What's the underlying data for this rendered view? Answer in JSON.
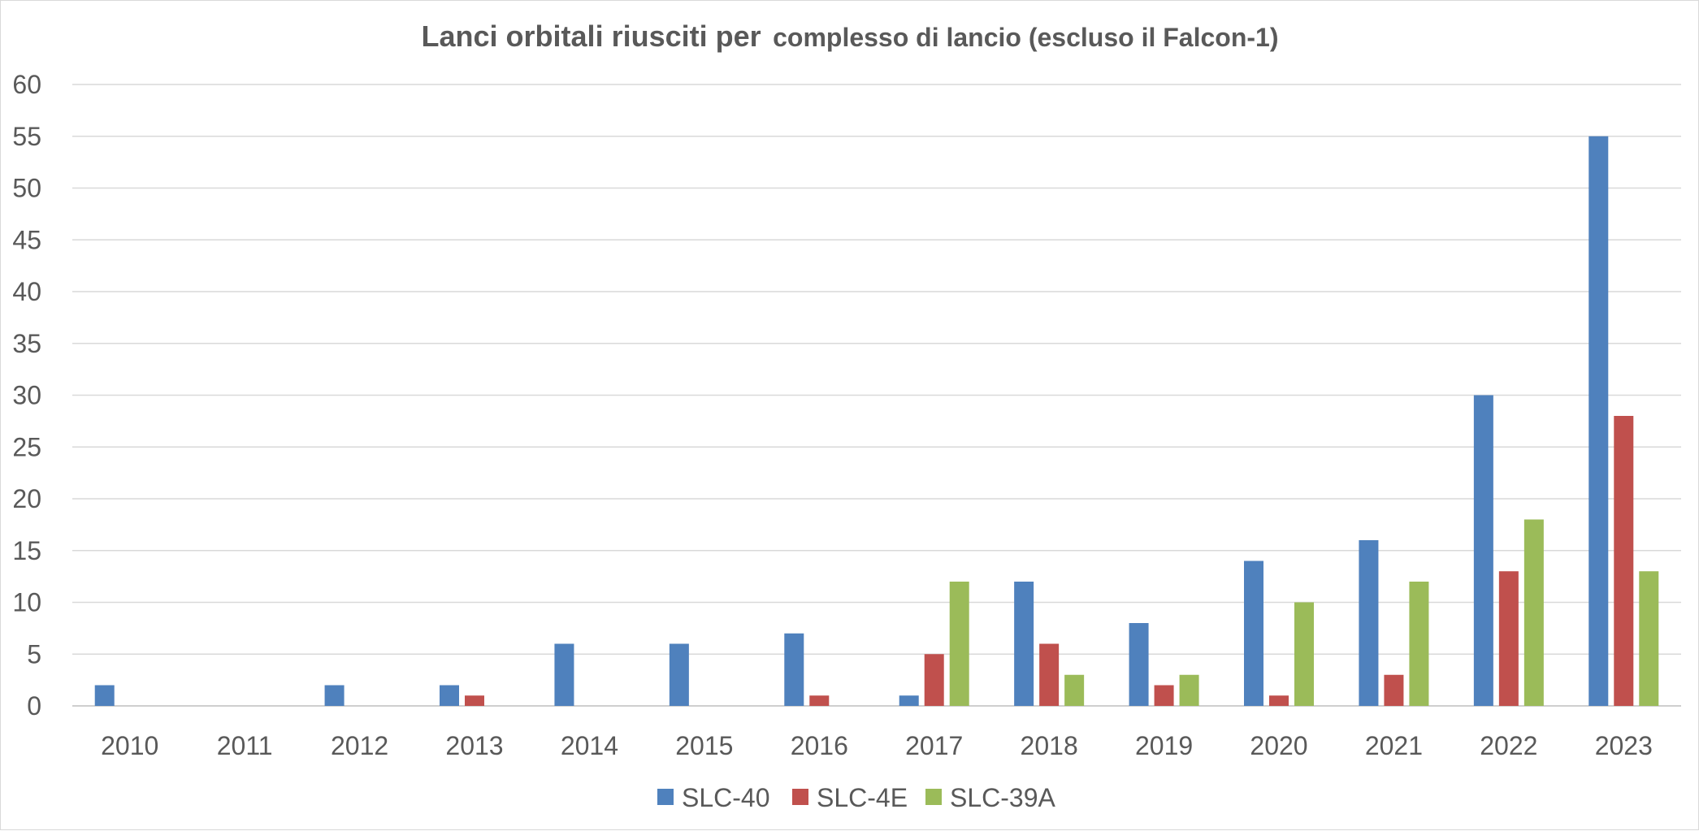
{
  "chart_data": {
    "type": "bar",
    "title_main": "Lanci orbitali riusciti per",
    "title_rest": "complesso di lancio (escluso il Falcon-1)",
    "categories": [
      "2010",
      "2011",
      "2012",
      "2013",
      "2014",
      "2015",
      "2016",
      "2017",
      "2018",
      "2019",
      "2020",
      "2021",
      "2022",
      "2023"
    ],
    "series": [
      {
        "name": "SLC-40",
        "color": "#4f81bd",
        "values": [
          2,
          0,
          2,
          2,
          6,
          6,
          7,
          1,
          12,
          8,
          14,
          16,
          30,
          55
        ]
      },
      {
        "name": "SLC-4E",
        "color": "#c0504d",
        "values": [
          0,
          0,
          0,
          1,
          0,
          0,
          1,
          5,
          6,
          2,
          1,
          3,
          13,
          28
        ]
      },
      {
        "name": "SLC-39A",
        "color": "#9bbb59",
        "values": [
          0,
          0,
          0,
          0,
          0,
          0,
          0,
          12,
          3,
          3,
          10,
          12,
          18,
          13
        ]
      }
    ],
    "ylim": [
      0,
      60
    ],
    "yticks": [
      0,
      5,
      10,
      15,
      20,
      25,
      30,
      35,
      40,
      45,
      50,
      55,
      60
    ],
    "grid": true,
    "legend_position": "bottom-center",
    "xlabel": "",
    "ylabel": ""
  }
}
